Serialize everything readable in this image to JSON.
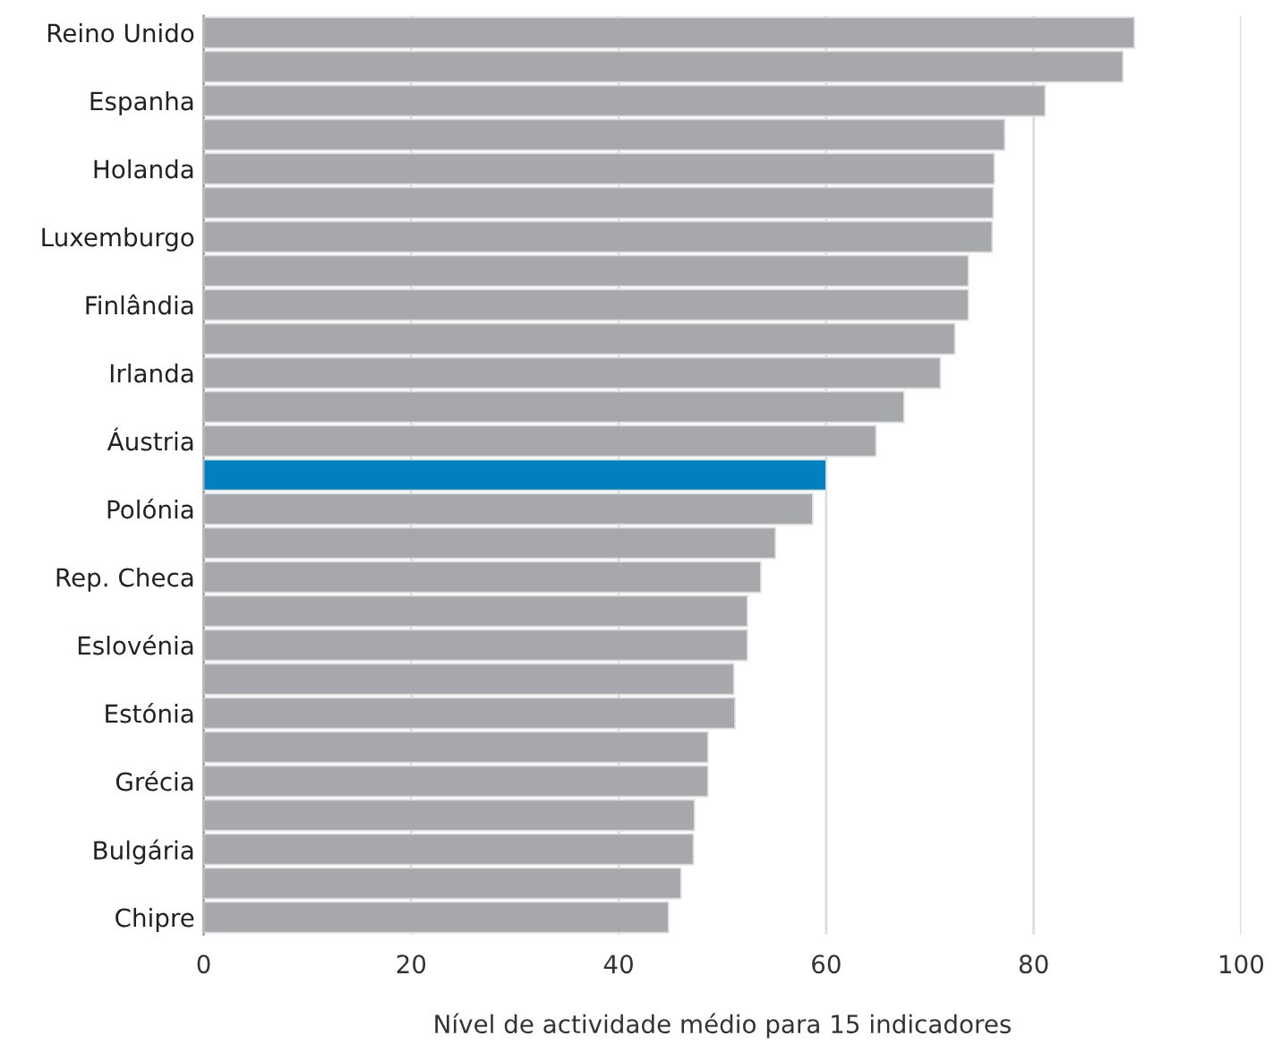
{
  "chart_data": {
    "type": "bar",
    "orientation": "horizontal",
    "xlabel": "Nível de actividade médio para 15 indicadores",
    "categories": [
      "Reino Unido",
      null,
      "Espanha",
      null,
      "Holanda",
      null,
      "Luxemburgo",
      null,
      "Finlândia",
      null,
      "Irlanda",
      null,
      "Áustria",
      null,
      "Polónia",
      null,
      "Rep. Checa",
      null,
      "Eslovénia",
      null,
      "Estónia",
      null,
      "Grécia",
      null,
      "Bulgária",
      null,
      "Chipre"
    ],
    "values": [
      89.7,
      88.6,
      81.1,
      77.2,
      76.2,
      76.1,
      76.0,
      73.7,
      73.7,
      72.4,
      71.0,
      67.5,
      64.8,
      60,
      58.7,
      55.1,
      53.7,
      52.4,
      52.4,
      51.1,
      51.2,
      48.6,
      48.6,
      47.3,
      47.2,
      46.0,
      44.8
    ],
    "colors": [
      "#a7a8ac",
      "#a7a8ac",
      "#a7a8ac",
      "#a7a8ac",
      "#a7a8ac",
      "#a7a8ac",
      "#a7a8ac",
      "#a7a8ac",
      "#a7a8ac",
      "#a7a8ac",
      "#a7a8ac",
      "#a7a8ac",
      "#a7a8ac",
      "#0080c0",
      "#a7a8ac",
      "#a7a8ac",
      "#a7a8ac",
      "#a7a8ac",
      "#a7a8ac",
      "#a7a8ac",
      "#a7a8ac",
      "#a7a8ac",
      "#a7a8ac",
      "#a7a8ac",
      "#a7a8ac",
      "#a7a8ac",
      "#a7a8ac"
    ],
    "xlim": [
      0,
      100
    ],
    "xticks": [
      0,
      20,
      40,
      60,
      80,
      100
    ],
    "grid": "x"
  }
}
